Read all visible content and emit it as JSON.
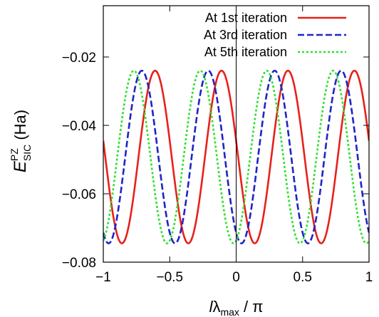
{
  "chart_data": {
    "type": "line",
    "title": "",
    "xlabel": {
      "prefix": "l",
      "symbol": "λ",
      "subscript": "max",
      "suffix": " / π"
    },
    "ylabel": {
      "symbol": "E",
      "superscript": "PZ",
      "subscript": "SIC",
      "unit": " (Ha)"
    },
    "xlim": [
      -1,
      1
    ],
    "ylim": [
      -0.08,
      -0.005
    ],
    "x_ticks": [
      -1,
      -0.5,
      0,
      0.5,
      1
    ],
    "x_tick_labels": [
      "−1",
      "−0.5",
      "0",
      "0.5",
      "1"
    ],
    "y_ticks": [
      -0.08,
      -0.06,
      -0.04,
      -0.02
    ],
    "y_tick_labels": [
      "−0.08",
      "−0.06",
      "−0.04",
      "−0.02"
    ],
    "grid": false,
    "legend_position": "top-right",
    "reference_line_x": 0,
    "series": [
      {
        "name": "At 1st iteration",
        "color": "#e8201b",
        "dash": "solid",
        "function": "sinusoid",
        "min": -0.0745,
        "max": -0.024,
        "period": 0.5,
        "x_of_peak": 0.39
      },
      {
        "name": "At 3rd iteration",
        "color": "#1f24c8",
        "dash": "dashed",
        "function": "sinusoid",
        "min": -0.0745,
        "max": -0.024,
        "period": 0.5,
        "x_of_peak": 0.29
      },
      {
        "name": "At 5th iteration",
        "color": "#2fe02f",
        "dash": "dotted",
        "function": "sinusoid",
        "min": -0.0745,
        "max": -0.024,
        "period": 0.5,
        "x_of_peak": 0.23
      }
    ]
  }
}
